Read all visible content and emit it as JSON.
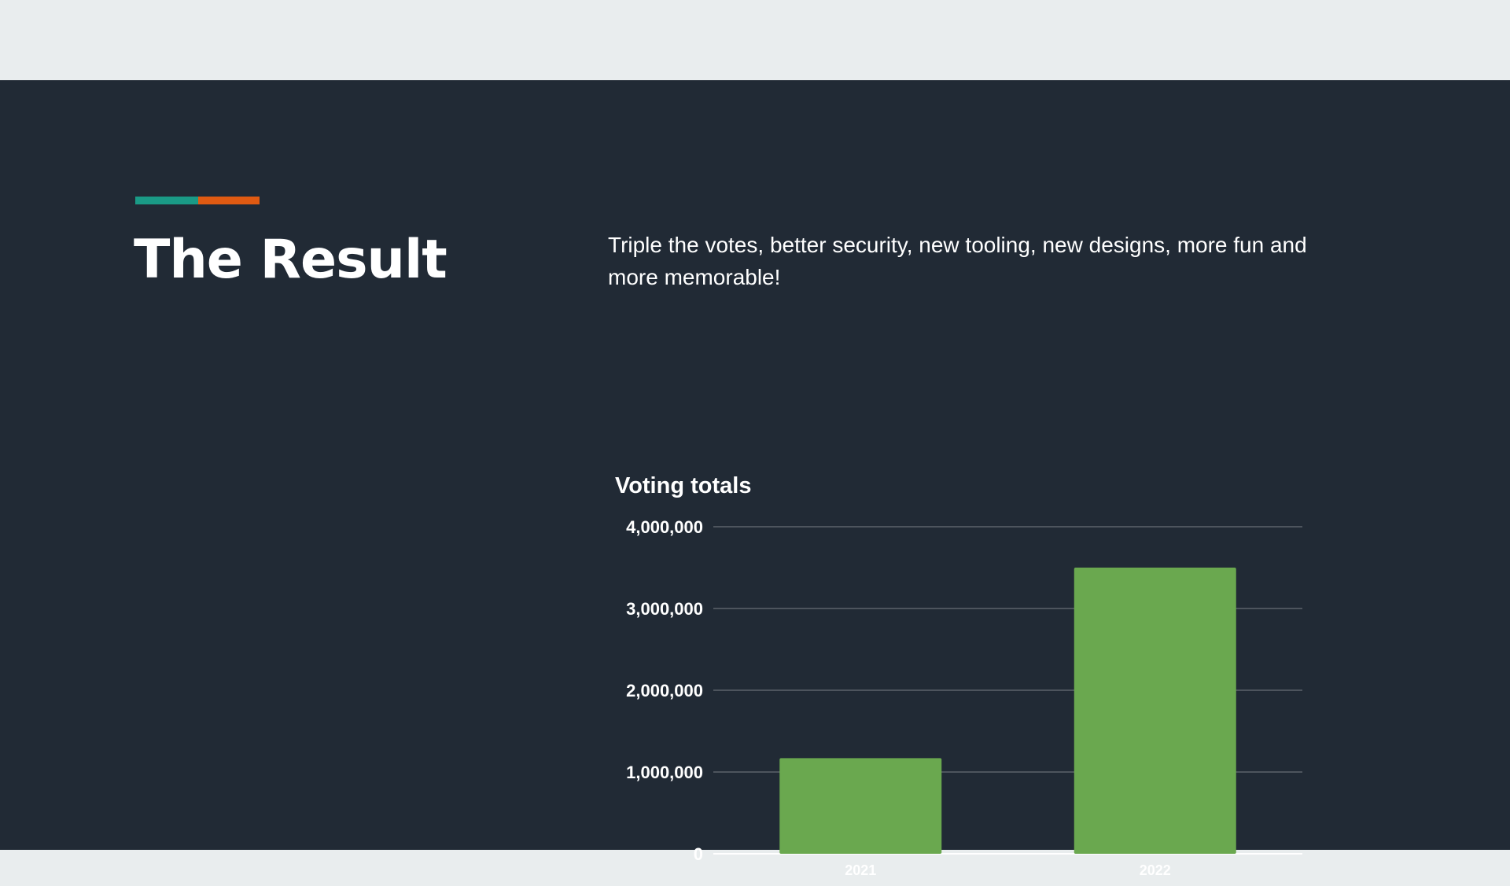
{
  "slide": {
    "title": "The Result",
    "description": "Triple the votes, better security, new tooling, new designs, more fun and more memorable!",
    "accent_colors": [
      "#1a9a86",
      "#e05a12"
    ],
    "background": "#212a35",
    "top_band_color": "#e9edee"
  },
  "chart_data": {
    "type": "bar",
    "title": "Voting totals",
    "categories": [
      "2021",
      "2022"
    ],
    "values": [
      1170000,
      3500000
    ],
    "ylim": [
      0,
      4000000
    ],
    "yticks": [
      0,
      1000000,
      2000000,
      3000000,
      4000000
    ],
    "ytick_labels": [
      "0",
      "1,000,000",
      "2,000,000",
      "3,000,000",
      "4,000,000"
    ],
    "xlabel": "",
    "ylabel": "",
    "grid": true,
    "legend": "none",
    "bar_color": "#6aa84f"
  }
}
